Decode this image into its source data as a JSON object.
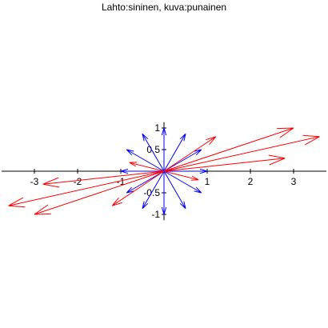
{
  "chart_data": {
    "type": "vector-field",
    "title": "Lahto:sininen, kuva:punainen",
    "xlim": [
      -3.7,
      3.7
    ],
    "ylim": [
      -1.1,
      1.1
    ],
    "x_ticks": [
      -3,
      -2,
      -1,
      1,
      2,
      3
    ],
    "x_tick_labels": [
      "-3",
      "-2",
      "-1",
      "1",
      "2",
      "3"
    ],
    "y_ticks": [
      -1,
      -0.5,
      0.5,
      1
    ],
    "y_tick_labels": [
      "-1",
      "-0.5",
      "0.5",
      "1"
    ],
    "series": [
      {
        "color": "#0000ff",
        "vectors": [
          [
            1.0,
            0.0
          ],
          [
            0.866,
            0.5
          ],
          [
            0.5,
            0.866
          ],
          [
            0.0,
            1.0
          ],
          [
            -0.5,
            0.866
          ],
          [
            -0.866,
            0.5
          ],
          [
            -1.0,
            0.0
          ],
          [
            -0.866,
            -0.5
          ],
          [
            -0.5,
            -0.866
          ],
          [
            0.0,
            -1.0
          ],
          [
            0.5,
            -0.866
          ],
          [
            0.866,
            -0.5
          ]
        ]
      },
      {
        "color": "#ff0000",
        "vectors": [
          [
            2.8,
            0.3
          ],
          [
            3.6,
            0.8
          ],
          [
            3.0,
            1.0
          ],
          [
            1.2,
            0.8
          ],
          [
            -0.8,
            0.2
          ],
          [
            -2.8,
            -0.3
          ],
          [
            -3.6,
            -0.8
          ],
          [
            -3.0,
            -1.0
          ],
          [
            -1.2,
            -0.8
          ],
          [
            0.8,
            -0.2
          ]
        ]
      }
    ],
    "colors": {
      "axes": "#000000"
    }
  }
}
